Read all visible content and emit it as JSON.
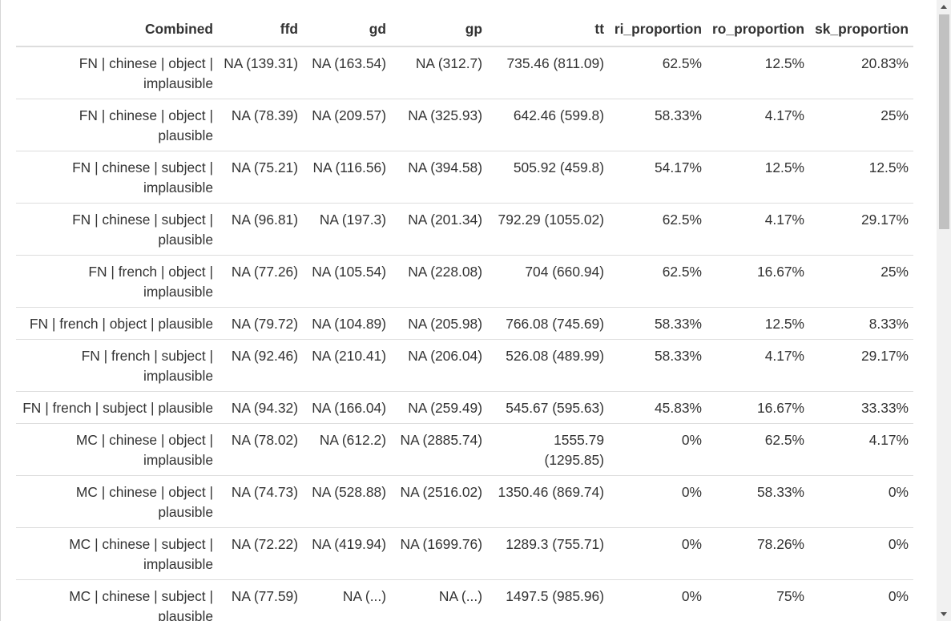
{
  "table": {
    "headers": [
      "Combined",
      "ffd",
      "gd",
      "gp",
      "tt",
      "ri_proportion",
      "ro_proportion",
      "sk_proportion"
    ],
    "rows": [
      [
        "FN | chinese | object | implausible",
        "NA (139.31)",
        "NA (163.54)",
        "NA (312.7)",
        "735.46 (811.09)",
        "62.5%",
        "12.5%",
        "20.83%"
      ],
      [
        "FN | chinese | object | plausible",
        "NA (78.39)",
        "NA (209.57)",
        "NA (325.93)",
        "642.46 (599.8)",
        "58.33%",
        "4.17%",
        "25%"
      ],
      [
        "FN | chinese | subject | implausible",
        "NA (75.21)",
        "NA (116.56)",
        "NA (394.58)",
        "505.92 (459.8)",
        "54.17%",
        "12.5%",
        "12.5%"
      ],
      [
        "FN | chinese | subject | plausible",
        "NA (96.81)",
        "NA (197.3)",
        "NA (201.34)",
        "792.29 (1055.02)",
        "62.5%",
        "4.17%",
        "29.17%"
      ],
      [
        "FN | french | object | implausible",
        "NA (77.26)",
        "NA (105.54)",
        "NA (228.08)",
        "704 (660.94)",
        "62.5%",
        "16.67%",
        "25%"
      ],
      [
        "FN | french | object | plausible",
        "NA (79.72)",
        "NA (104.89)",
        "NA (205.98)",
        "766.08 (745.69)",
        "58.33%",
        "12.5%",
        "8.33%"
      ],
      [
        "FN | french | subject | implausible",
        "NA (92.46)",
        "NA (210.41)",
        "NA (206.04)",
        "526.08 (489.99)",
        "58.33%",
        "4.17%",
        "29.17%"
      ],
      [
        "FN | french | subject | plausible",
        "NA (94.32)",
        "NA (166.04)",
        "NA (259.49)",
        "545.67 (595.63)",
        "45.83%",
        "16.67%",
        "33.33%"
      ],
      [
        "MC | chinese | object | implausible",
        "NA (78.02)",
        "NA (612.2)",
        "NA (2885.74)",
        "1555.79 (1295.85)",
        "0%",
        "62.5%",
        "4.17%"
      ],
      [
        "MC | chinese | object | plausible",
        "NA (74.73)",
        "NA (528.88)",
        "NA (2516.02)",
        "1350.46 (869.74)",
        "0%",
        "58.33%",
        "0%"
      ],
      [
        "MC | chinese | subject | implausible",
        "NA (72.22)",
        "NA (419.94)",
        "NA (1699.76)",
        "1289.3 (755.71)",
        "0%",
        "78.26%",
        "0%"
      ],
      [
        "MC | chinese | subject | plausible",
        "NA (77.59)",
        "NA (...)",
        "NA (...)",
        "1497.5 (985.96)",
        "0%",
        "75%",
        "0%"
      ]
    ]
  },
  "icons": {
    "scroll_up": "chevron-up-icon",
    "scroll_down": "chevron-down-icon"
  }
}
